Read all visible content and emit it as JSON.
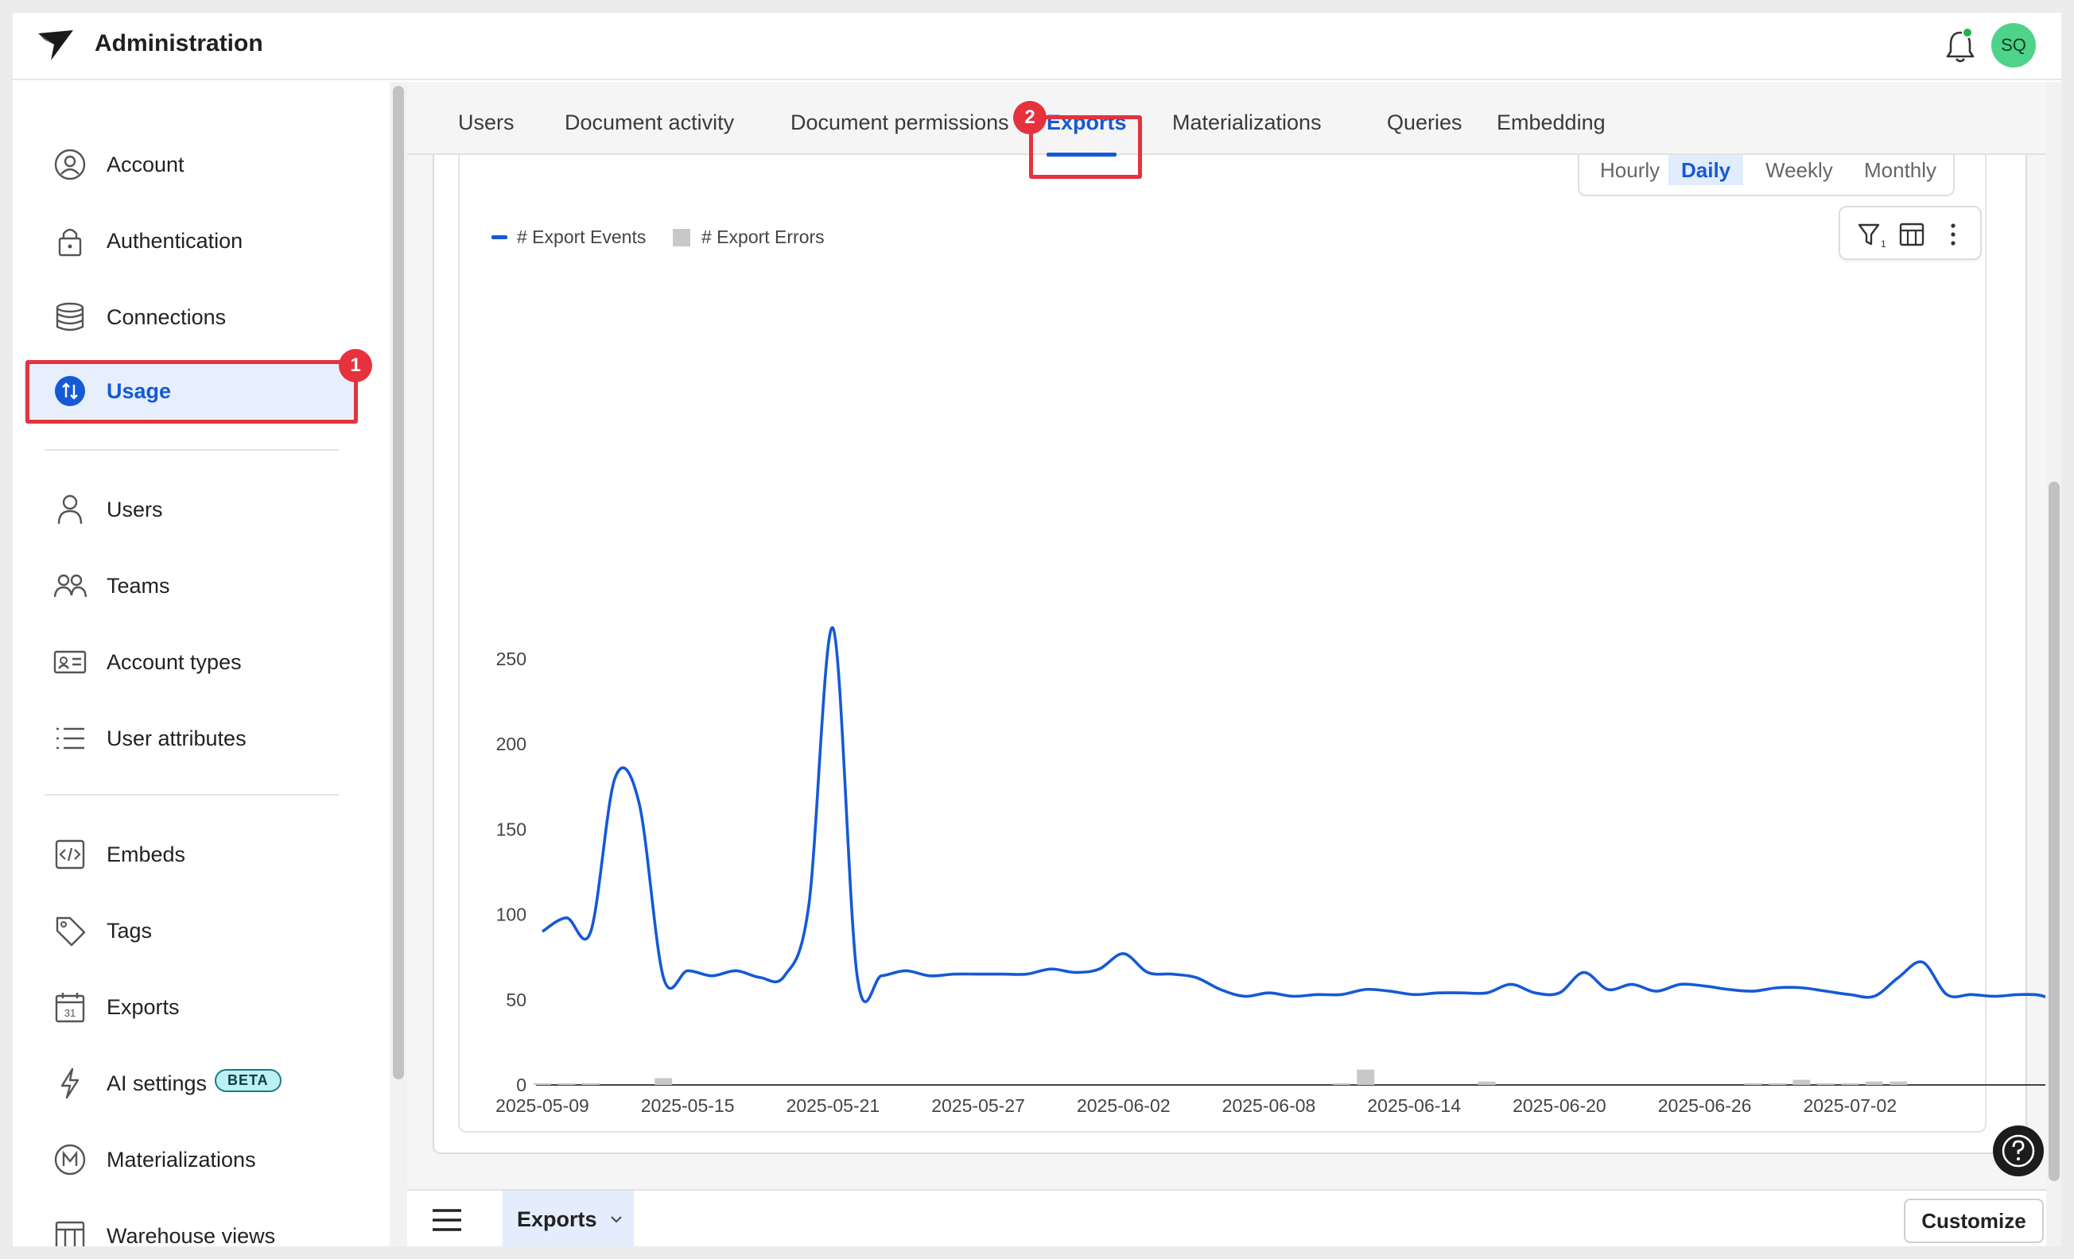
{
  "app": {
    "title": "Administration",
    "avatar_initials": "SQ",
    "brand_color": "#1559d6",
    "highlight_color": "#e5323d"
  },
  "sidebar": {
    "items": [
      {
        "label": "Account",
        "icon": "user-circle-icon"
      },
      {
        "label": "Authentication",
        "icon": "lock-icon"
      },
      {
        "label": "Connections",
        "icon": "database-icon"
      },
      {
        "label": "Usage",
        "icon": "usage-icon",
        "active": true
      },
      {
        "label": "Users",
        "icon": "person-icon"
      },
      {
        "label": "Teams",
        "icon": "people-icon"
      },
      {
        "label": "Account types",
        "icon": "id-card-icon"
      },
      {
        "label": "User attributes",
        "icon": "list-icon"
      },
      {
        "label": "Embeds",
        "icon": "code-icon"
      },
      {
        "label": "Tags",
        "icon": "tag-icon"
      },
      {
        "label": "Exports",
        "icon": "calendar-icon"
      },
      {
        "label": "AI settings",
        "icon": "lightning-icon",
        "badge": "BETA"
      },
      {
        "label": "Materializations",
        "icon": "m-circle-icon"
      },
      {
        "label": "Warehouse views",
        "icon": "table-icon"
      }
    ],
    "step_badge": "1"
  },
  "tabs": {
    "items": [
      "Users",
      "Document activity",
      "Document permissions",
      "Exports",
      "Materializations",
      "Queries",
      "Embedding"
    ],
    "active": "Exports",
    "step_badge": "2"
  },
  "granularity": {
    "options": [
      "Hourly",
      "Daily",
      "Weekly",
      "Monthly"
    ],
    "selected": "Daily"
  },
  "footer": {
    "page_label": "Exports",
    "customize_label": "Customize"
  },
  "chart_data": {
    "type": "line",
    "legend": [
      "# Export Events",
      "# Export Errors"
    ],
    "ylim": [
      0,
      270
    ],
    "y_ticks": [
      0,
      50,
      100,
      150,
      200,
      250
    ],
    "x_tick_labels": [
      "2025-05-09",
      "2025-05-15",
      "2025-05-21",
      "2025-05-27",
      "2025-06-02",
      "2025-06-08",
      "2025-06-14",
      "2025-06-20",
      "2025-06-26",
      "2025-07-02"
    ],
    "x_start": "2025-05-09",
    "series": [
      {
        "name": "# Export Events",
        "kind": "line",
        "color": "#1559d6",
        "values": [
          90,
          98,
          90,
          180,
          165,
          63,
          67,
          64,
          67,
          63,
          64,
          105,
          268,
          64,
          64,
          67,
          64,
          65,
          65,
          65,
          65,
          68,
          66,
          68,
          77,
          66,
          65,
          63,
          56,
          52,
          54,
          52,
          53,
          53,
          56,
          55,
          53,
          54,
          54,
          54,
          59,
          54,
          54,
          66,
          56,
          59,
          55,
          59,
          58,
          56,
          55,
          57,
          57,
          55,
          53,
          52,
          63,
          72,
          53,
          53,
          52,
          53,
          52,
          44
        ],
        "x_offset_days": 0
      },
      {
        "name": "# Export Errors",
        "kind": "bar",
        "color": "#c8c8c8",
        "values": [
          1,
          1,
          1,
          0,
          0,
          4,
          0,
          0,
          0,
          0,
          0,
          0,
          0,
          0,
          0,
          0,
          0,
          0,
          0,
          0,
          0,
          0,
          0,
          0,
          0,
          0,
          0,
          0,
          0,
          0,
          0,
          0,
          0,
          1,
          9,
          0,
          0,
          0,
          0,
          2,
          0,
          0,
          0,
          0,
          0,
          0,
          0,
          0,
          0,
          0,
          1,
          1,
          3,
          1,
          1,
          2,
          2,
          0,
          0,
          0,
          0,
          0,
          0,
          0
        ]
      }
    ]
  }
}
